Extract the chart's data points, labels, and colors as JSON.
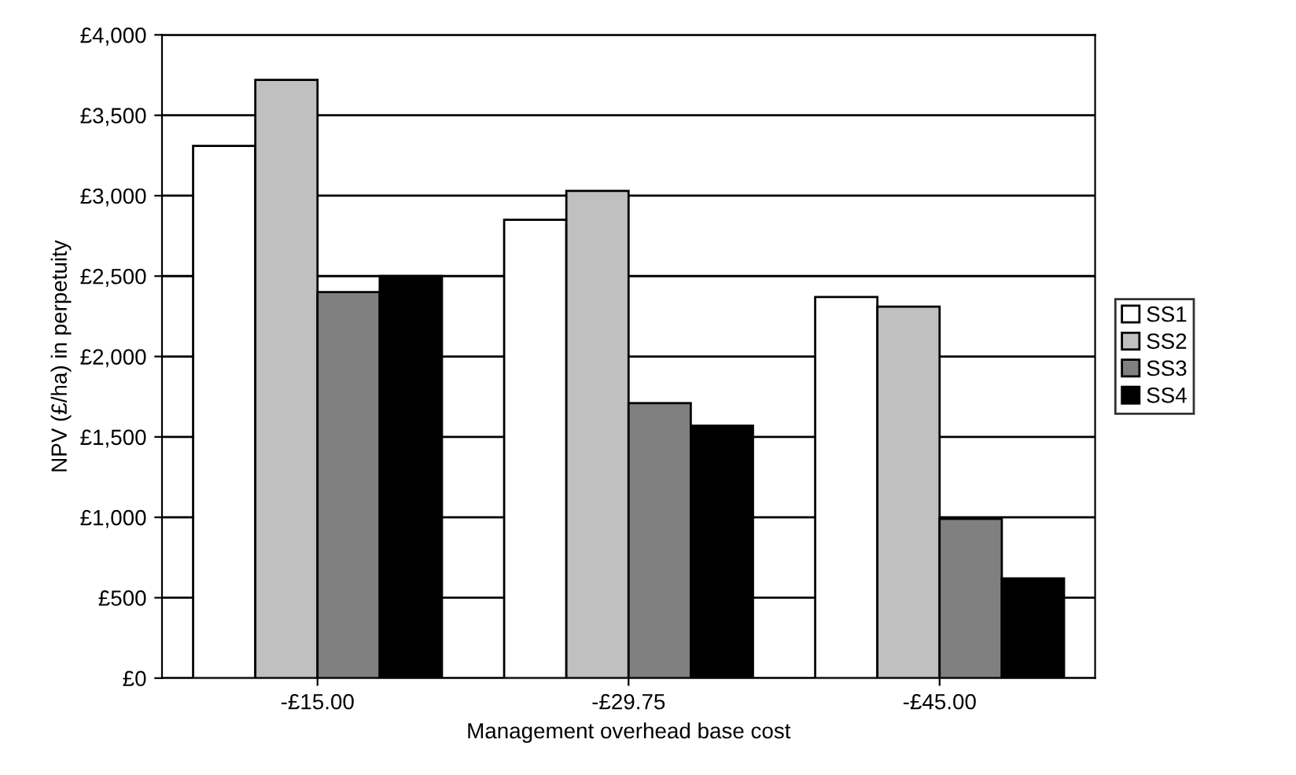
{
  "chart_data": {
    "type": "bar",
    "xlabel": "Management overhead base cost",
    "ylabel": "NPV (£/ha) in perpetuity",
    "categories": [
      "-£15.00",
      "-£29.75",
      "-£45.00"
    ],
    "series": [
      {
        "name": "SS1",
        "color": "#ffffff",
        "values": [
          3310,
          2850,
          2370
        ]
      },
      {
        "name": "SS2",
        "color": "#c0c0c0",
        "values": [
          3720,
          3030,
          2310
        ]
      },
      {
        "name": "SS3",
        "color": "#808080",
        "values": [
          2400,
          1710,
          990
        ]
      },
      {
        "name": "SS4",
        "color": "#000000",
        "values": [
          2500,
          1570,
          620
        ]
      }
    ],
    "ylim": [
      0,
      4000
    ],
    "yticks": [
      {
        "value": 0,
        "label": "£0"
      },
      {
        "value": 500,
        "label": "£500"
      },
      {
        "value": 1000,
        "label": "£1,000"
      },
      {
        "value": 1500,
        "label": "£1,500"
      },
      {
        "value": 2000,
        "label": "£2,000"
      },
      {
        "value": 2500,
        "label": "£2,500"
      },
      {
        "value": 3000,
        "label": "£3,000"
      },
      {
        "value": 3500,
        "label": "£3,500"
      },
      {
        "value": 4000,
        "label": "£4,000"
      }
    ],
    "grid": "y",
    "legend": "right"
  }
}
